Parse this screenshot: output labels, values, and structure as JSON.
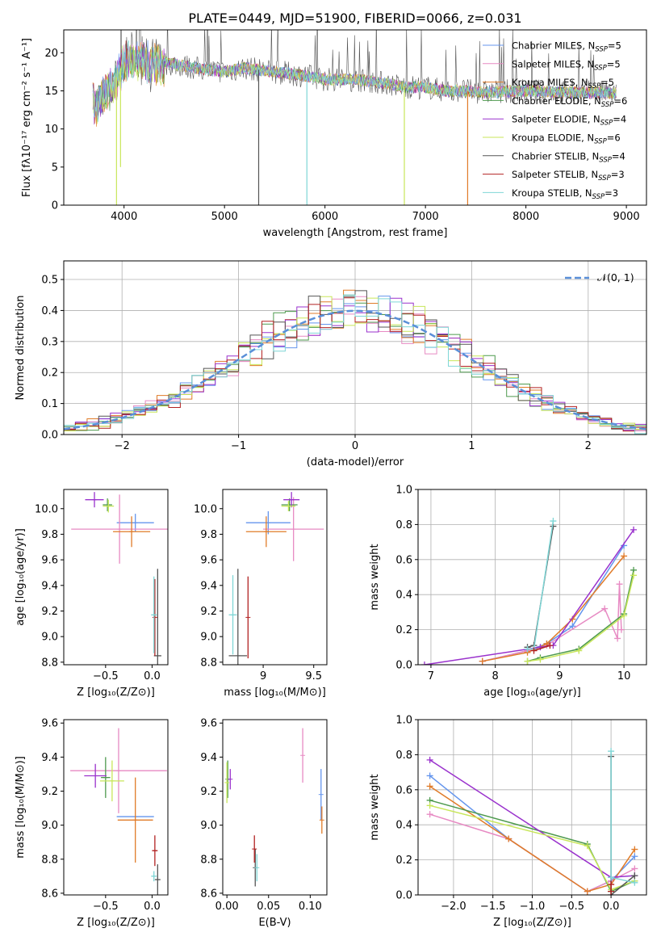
{
  "figure_title": "PLATE=0449, MJD=51900, FIBERID=0066, z=0.031",
  "colors": {
    "chabrier_miles": "#6495ED",
    "salpeter_miles": "#E78AC3",
    "kroupa_miles": "#E07B28",
    "chabrier_elodie": "#4E9A4E",
    "salpeter_elodie": "#9A32CD",
    "kroupa_elodie": "#C8E65A",
    "chabrier_stelib": "#555555",
    "salpeter_stelib": "#B22222",
    "kroupa_stelib": "#7FD6D6",
    "gaussian": "#5A8FD8"
  },
  "legend": [
    {
      "text": "Chabrier MILES, N",
      "sub": "SSP",
      "tail": "=5",
      "color": "#6495ED"
    },
    {
      "text": "Salpeter MILES, N",
      "sub": "SSP",
      "tail": "=5",
      "color": "#E78AC3"
    },
    {
      "text": "Kroupa MILES, N",
      "sub": "SSP",
      "tail": "=5",
      "color": "#E07B28"
    },
    {
      "text": "Chabrier ELODIE, N",
      "sub": "SSP",
      "tail": "=6",
      "color": "#4E9A4E"
    },
    {
      "text": "Salpeter ELODIE, N",
      "sub": "SSP",
      "tail": "=4",
      "color": "#9A32CD"
    },
    {
      "text": "Kroupa ELODIE, N",
      "sub": "SSP",
      "tail": "=6",
      "color": "#C8E65A"
    },
    {
      "text": "Chabrier STELIB, N",
      "sub": "SSP",
      "tail": "=4",
      "color": "#555555"
    },
    {
      "text": "Salpeter STELIB, N",
      "sub": "SSP",
      "tail": "=3",
      "color": "#B22222"
    },
    {
      "text": "Kroupa STELIB, N",
      "sub": "SSP",
      "tail": "=3",
      "color": "#7FD6D6"
    }
  ],
  "chart_data": [
    {
      "id": "spectrum",
      "type": "line",
      "xlabel": "wavelength [Angstrom, rest frame]",
      "ylabel": "Flux [fλ10⁻¹⁷ erg cm⁻² s⁻¹ A⁻¹]",
      "xlim": [
        3400,
        9200
      ],
      "ylim": [
        0,
        23
      ],
      "xticks": [
        4000,
        5000,
        6000,
        7000,
        8000,
        9000
      ],
      "yticks": [
        0,
        5,
        10,
        15,
        20
      ],
      "grid": false,
      "legend": "top-right",
      "envelope": [
        [
          3700,
          13
        ],
        [
          3800,
          15
        ],
        [
          3900,
          16
        ],
        [
          4000,
          19
        ],
        [
          4100,
          19.5
        ],
        [
          4300,
          19
        ],
        [
          4500,
          18.5
        ],
        [
          4700,
          18
        ],
        [
          5000,
          17.5
        ],
        [
          5200,
          18
        ],
        [
          5500,
          17.5
        ],
        [
          5800,
          17
        ],
        [
          6000,
          16.5
        ],
        [
          6300,
          16.5
        ],
        [
          6600,
          16
        ],
        [
          6800,
          15.5
        ],
        [
          7000,
          15.5
        ],
        [
          7200,
          15
        ],
        [
          7400,
          15
        ],
        [
          7600,
          14.8
        ],
        [
          8000,
          15
        ],
        [
          8400,
          14.8
        ],
        [
          8700,
          14.8
        ],
        [
          8900,
          14.7
        ]
      ],
      "spikes": [
        {
          "x": 3925,
          "y": 0,
          "color": "#C8E65A"
        },
        {
          "x": 3965,
          "y": 5,
          "color": "#C8E65A"
        },
        {
          "x": 5340,
          "y": 0,
          "color": "#555555"
        },
        {
          "x": 5820,
          "y": 0,
          "color": "#7FD6D6"
        },
        {
          "x": 6790,
          "y": 0,
          "color": "#C8E65A"
        },
        {
          "x": 7420,
          "y": 0,
          "color": "#E07B28"
        }
      ]
    },
    {
      "id": "residuals",
      "type": "histogram",
      "xlabel": "(data-model)/error",
      "ylabel": "Normed distribution",
      "xlim": [
        -2.5,
        2.5
      ],
      "ylim": [
        0,
        0.56
      ],
      "xticks": [
        -2,
        -1,
        0,
        1,
        2
      ],
      "xtick_labels": [
        "−2",
        "−1",
        "0",
        "1",
        "2"
      ],
      "yticks": [
        0.0,
        0.1,
        0.2,
        0.3,
        0.4,
        0.5
      ],
      "grid": true,
      "gaussian_label": "𝒩(0, 1)"
    },
    {
      "id": "age_vs_Z",
      "type": "errorbar",
      "xlabel": "Z [log₁₀(Z/Z⊙)]",
      "ylabel": "age  [log₁₀(age/yr)]",
      "xlim": [
        -0.95,
        0.17
      ],
      "ylim": [
        8.78,
        10.15
      ],
      "xticks": [
        -0.5,
        0.0
      ],
      "xtick_labels": [
        "−0.5",
        "0.0"
      ],
      "yticks": [
        8.8,
        9.0,
        9.2,
        9.4,
        9.6,
        9.8,
        10.0
      ],
      "points": [
        {
          "x": -0.18,
          "y": 9.89,
          "xerr": 0.2,
          "yerr": 0.07,
          "color": "#6495ED"
        },
        {
          "x": -0.35,
          "y": 9.84,
          "xerr": 0.52,
          "yerr": 0.27,
          "color": "#E78AC3"
        },
        {
          "x": -0.22,
          "y": 9.82,
          "xerr": 0.2,
          "yerr": 0.12,
          "color": "#E07B28"
        },
        {
          "x": -0.48,
          "y": 10.03,
          "xerr": 0.05,
          "yerr": 0.05,
          "color": "#4E9A4E"
        },
        {
          "x": -0.62,
          "y": 10.07,
          "xerr": 0.1,
          "yerr": 0.06,
          "color": "#9A32CD"
        },
        {
          "x": -0.47,
          "y": 10.02,
          "xerr": 0.06,
          "yerr": 0.05,
          "color": "#C8E65A"
        },
        {
          "x": 0.06,
          "y": 8.85,
          "xerr": 0.04,
          "yerr": 0.68,
          "color": "#555555"
        },
        {
          "x": 0.03,
          "y": 9.15,
          "xerr": 0.0,
          "yerr": 0.3,
          "color": "#B22222"
        },
        {
          "x": 0.02,
          "y": 9.17,
          "xerr": 0.03,
          "yerr": 0.3,
          "color": "#7FD6D6"
        }
      ]
    },
    {
      "id": "age_vs_mass",
      "type": "errorbar",
      "xlabel": "mass [log₁₀(M/M⊙)]",
      "ylabel": "",
      "xlim": [
        8.6,
        9.63
      ],
      "ylim": [
        8.78,
        10.15
      ],
      "xticks": [
        9.0,
        9.5
      ],
      "yticks": [
        8.8,
        9.0,
        9.2,
        9.4,
        9.6,
        9.8,
        10.0
      ],
      "points": [
        {
          "x": 9.05,
          "y": 9.89,
          "xerr": 0.22,
          "yerr": 0.09,
          "color": "#6495ED"
        },
        {
          "x": 9.3,
          "y": 9.84,
          "xerr": 0.3,
          "yerr": 0.25,
          "color": "#E78AC3"
        },
        {
          "x": 9.03,
          "y": 9.82,
          "xerr": 0.2,
          "yerr": 0.12,
          "color": "#E07B28"
        },
        {
          "x": 9.26,
          "y": 10.03,
          "xerr": 0.08,
          "yerr": 0.05,
          "color": "#4E9A4E"
        },
        {
          "x": 9.28,
          "y": 10.07,
          "xerr": 0.08,
          "yerr": 0.06,
          "color": "#9A32CD"
        },
        {
          "x": 9.25,
          "y": 10.02,
          "xerr": 0.07,
          "yerr": 0.04,
          "color": "#C8E65A"
        },
        {
          "x": 8.75,
          "y": 8.85,
          "xerr": 0.09,
          "yerr": 0.68,
          "color": "#555555"
        },
        {
          "x": 8.85,
          "y": 9.15,
          "xerr": 0.0,
          "yerr": 0.32,
          "color": "#B22222"
        },
        {
          "x": 8.7,
          "y": 9.17,
          "xerr": 0.04,
          "yerr": 0.31,
          "color": "#7FD6D6"
        }
      ]
    },
    {
      "id": "massweight_vs_age",
      "type": "line",
      "xlabel": "age  [log₁₀(age/yr)]",
      "ylabel": "mass weight",
      "xlim": [
        6.8,
        10.35
      ],
      "ylim": [
        0,
        1
      ],
      "xticks": [
        7,
        8,
        9,
        10
      ],
      "yticks": [
        0.0,
        0.2,
        0.4,
        0.6,
        0.8,
        1.0
      ],
      "grid": true,
      "series": [
        {
          "color": "#6495ED",
          "x": [
            7.8,
            8.5,
            8.8,
            9.2,
            10.0
          ],
          "y": [
            0.02,
            0.08,
            0.12,
            0.22,
            0.68
          ]
        },
        {
          "color": "#E78AC3",
          "x": [
            7.8,
            8.5,
            8.8,
            9.7,
            9.9,
            9.93,
            9.96
          ],
          "y": [
            0.02,
            0.08,
            0.11,
            0.32,
            0.15,
            0.46,
            0.2
          ]
        },
        {
          "color": "#E07B28",
          "x": [
            7.8,
            8.5,
            8.8,
            9.2,
            10.0
          ],
          "y": [
            0.02,
            0.07,
            0.12,
            0.26,
            0.62
          ]
        },
        {
          "color": "#4E9A4E",
          "x": [
            8.5,
            8.7,
            9.3,
            10.0,
            10.15
          ],
          "y": [
            0.02,
            0.04,
            0.09,
            0.29,
            0.54
          ]
        },
        {
          "color": "#9A32CD",
          "x": [
            6.9,
            8.7,
            8.9,
            10.15
          ],
          "y": [
            0.0,
            0.1,
            0.11,
            0.77
          ]
        },
        {
          "color": "#C8E65A",
          "x": [
            8.5,
            8.7,
            9.3,
            10.0,
            10.15
          ],
          "y": [
            0.02,
            0.03,
            0.08,
            0.28,
            0.51
          ]
        },
        {
          "color": "#555555",
          "x": [
            8.5,
            8.6,
            8.9
          ],
          "y": [
            0.1,
            0.11,
            0.79
          ]
        },
        {
          "color": "#7FD6D6",
          "x": [
            8.5,
            8.6,
            8.9
          ],
          "y": [
            0.09,
            0.09,
            0.82
          ]
        },
        {
          "color": "#B22222",
          "x": [
            8.6,
            8.85
          ],
          "y": [
            0.08,
            0.11
          ]
        }
      ]
    },
    {
      "id": "mass_vs_Z",
      "type": "errorbar",
      "xlabel": "Z [log₁₀(Z/Z⊙)]",
      "ylabel": "mass [log₁₀(M/M⊙)]",
      "xlim": [
        -0.95,
        0.17
      ],
      "ylim": [
        8.59,
        9.62
      ],
      "xticks": [
        -0.5,
        0.0
      ],
      "xtick_labels": [
        "−0.5",
        "0.0"
      ],
      "yticks": [
        8.6,
        8.8,
        9.0,
        9.2,
        9.4,
        9.6
      ],
      "points": [
        {
          "x": -0.18,
          "y": 9.05,
          "xerr": 0.2,
          "yerr": 0.0,
          "color": "#6495ED"
        },
        {
          "x": -0.36,
          "y": 9.32,
          "xerr": 0.52,
          "yerr": 0.25,
          "color": "#E78AC3"
        },
        {
          "x": -0.18,
          "y": 9.03,
          "xerr": 0.19,
          "yerr": 0.25,
          "color": "#E07B28"
        },
        {
          "x": -0.5,
          "y": 9.28,
          "xerr": 0.05,
          "yerr": 0.12,
          "color": "#4E9A4E"
        },
        {
          "x": -0.61,
          "y": 9.29,
          "xerr": 0.12,
          "yerr": 0.07,
          "color": "#9A32CD"
        },
        {
          "x": -0.43,
          "y": 9.26,
          "xerr": 0.13,
          "yerr": 0.12,
          "color": "#C8E65A"
        },
        {
          "x": 0.06,
          "y": 8.68,
          "xerr": 0.03,
          "yerr": 0.09,
          "color": "#555555"
        },
        {
          "x": 0.03,
          "y": 8.85,
          "xerr": 0.03,
          "yerr": 0.09,
          "color": "#B22222"
        },
        {
          "x": 0.02,
          "y": 8.7,
          "xerr": 0.03,
          "yerr": 0.03,
          "color": "#7FD6D6"
        }
      ]
    },
    {
      "id": "mass_vs_ebv",
      "type": "errorbar",
      "xlabel": "E(B-V)",
      "ylabel": "",
      "xlim": [
        -0.005,
        0.12
      ],
      "ylim": [
        8.59,
        9.62
      ],
      "xticks": [
        0.0,
        0.05,
        0.1
      ],
      "xtick_labels": [
        "0.00",
        "0.05",
        "0.10"
      ],
      "yticks": [
        8.6,
        8.8,
        9.0,
        9.2,
        9.4,
        9.6
      ],
      "points": [
        {
          "x": 0.113,
          "y": 9.18,
          "xerr": 0.0,
          "yerr": 0.15,
          "color": "#6495ED"
        },
        {
          "x": 0.091,
          "y": 9.41,
          "xerr": 0.0,
          "yerr": 0.16,
          "color": "#E78AC3"
        },
        {
          "x": 0.114,
          "y": 9.03,
          "xerr": 0.0,
          "yerr": 0.08,
          "color": "#E07B28"
        },
        {
          "x": 0.001,
          "y": 9.27,
          "xerr": 0.0,
          "yerr": 0.11,
          "color": "#4E9A4E"
        },
        {
          "x": 0.004,
          "y": 9.27,
          "xerr": 0.0,
          "yerr": 0.06,
          "color": "#9A32CD"
        },
        {
          "x": 0.0,
          "y": 9.25,
          "xerr": 0.0,
          "yerr": 0.12,
          "color": "#C8E65A"
        },
        {
          "x": 0.034,
          "y": 8.75,
          "xerr": 0.0,
          "yerr": 0.11,
          "color": "#555555"
        },
        {
          "x": 0.033,
          "y": 8.86,
          "xerr": 0.0,
          "yerr": 0.08,
          "color": "#B22222"
        },
        {
          "x": 0.036,
          "y": 8.75,
          "xerr": 0.0,
          "yerr": 0.08,
          "color": "#7FD6D6"
        }
      ]
    },
    {
      "id": "massweight_vs_Z",
      "type": "line",
      "xlabel": "Z [log₁₀(Z/Z⊙)]",
      "ylabel": "mass weight",
      "xlim": [
        -2.45,
        0.45
      ],
      "ylim": [
        0,
        1
      ],
      "xticks": [
        -2.0,
        -1.5,
        -1.0,
        -0.5,
        0.0
      ],
      "xtick_labels": [
        "−2.0",
        "−1.5",
        "−1.0",
        "−0.5",
        "0.0"
      ],
      "yticks": [
        0.0,
        0.2,
        0.4,
        0.6,
        0.8,
        1.0
      ],
      "grid": true,
      "series": [
        {
          "color": "#6495ED",
          "x": [
            -2.3,
            -1.3,
            -0.3,
            0.0,
            0.3
          ],
          "y": [
            0.68,
            0.32,
            0.02,
            0.08,
            0.22
          ]
        },
        {
          "color": "#E78AC3",
          "x": [
            -2.3,
            -1.3,
            -0.3,
            0.0,
            0.3
          ],
          "y": [
            0.46,
            0.32,
            0.02,
            0.08,
            0.15
          ]
        },
        {
          "color": "#E07B28",
          "x": [
            -2.3,
            -1.3,
            -0.3,
            0.0,
            0.3
          ],
          "y": [
            0.62,
            0.32,
            0.02,
            0.06,
            0.26
          ]
        },
        {
          "color": "#4E9A4E",
          "x": [
            -2.3,
            -0.3,
            0.0,
            0.3
          ],
          "y": [
            0.54,
            0.29,
            0.02,
            0.08
          ]
        },
        {
          "color": "#9A32CD",
          "x": [
            -2.3,
            0.0,
            0.3
          ],
          "y": [
            0.77,
            0.1,
            0.11
          ]
        },
        {
          "color": "#C8E65A",
          "x": [
            -2.3,
            -0.3,
            0.0,
            0.3
          ],
          "y": [
            0.51,
            0.28,
            0.03,
            0.08
          ]
        },
        {
          "color": "#555555",
          "x": [
            0.0,
            0.0,
            0.3
          ],
          "y": [
            0.79,
            0.0,
            0.11
          ]
        },
        {
          "color": "#7FD6D6",
          "x": [
            0.0,
            0.0,
            0.3
          ],
          "y": [
            0.82,
            0.1,
            0.07
          ]
        },
        {
          "color": "#B22222",
          "x": [
            0.0,
            0.0
          ],
          "y": [
            0.02,
            0.06
          ]
        }
      ]
    }
  ]
}
